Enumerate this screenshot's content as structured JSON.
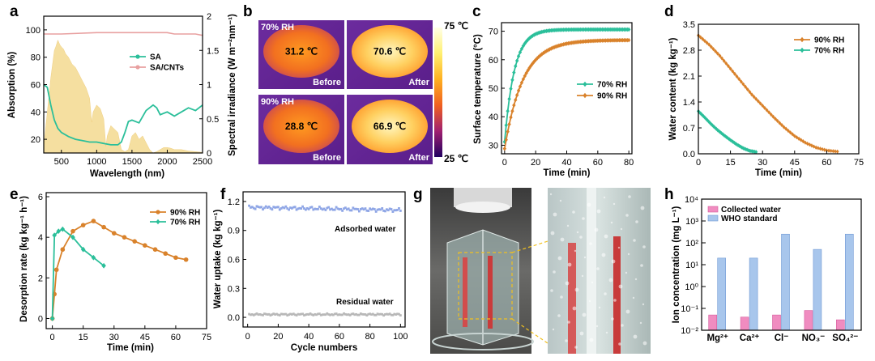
{
  "colors": {
    "teal": "#2bbf9a",
    "orange": "#d9822b",
    "pinkline": "#e8a0a0",
    "sunfill": "#f5dfa0",
    "bar_pink": "#f08cc0",
    "bar_blue": "#a8c6ec"
  },
  "chart_data": [
    {
      "panel": "a",
      "type": "line",
      "xlabel": "Wavelength (nm)",
      "ylabel": "Absorption (%)",
      "y2label": "Spectral irradiance (W m⁻²nm⁻¹)",
      "xlim": [
        250,
        2500
      ],
      "ylim": [
        10,
        110
      ],
      "y2lim": [
        0,
        2.0
      ],
      "xticks": [
        "500",
        "1000",
        "1500",
        "2000",
        "2500"
      ],
      "yticks": [
        "20",
        "40",
        "60",
        "80",
        "100"
      ],
      "y2ticks": [
        "0",
        "0.5",
        "1",
        "1.5",
        "2"
      ],
      "series": [
        {
          "name": "SA",
          "x": [
            250,
            300,
            350,
            400,
            450,
            500,
            600,
            700,
            800,
            900,
            1000,
            1100,
            1200,
            1300,
            1350,
            1400,
            1450,
            1500,
            1600,
            1700,
            1800,
            1850,
            1900,
            2000,
            2100,
            2200,
            2300,
            2400,
            2500
          ],
          "values": [
            60,
            58,
            45,
            34,
            28,
            25,
            22,
            20,
            19,
            18,
            18,
            17,
            16,
            16,
            18,
            25,
            33,
            34,
            32,
            41,
            45,
            43,
            38,
            40,
            37,
            40,
            43,
            41,
            45
          ]
        },
        {
          "name": "SA/CNTs",
          "x": [
            250,
            500,
            1000,
            1500,
            2000,
            2100,
            2200,
            2300,
            2400,
            2500
          ],
          "values": [
            97,
            97,
            98,
            98,
            98,
            97,
            97,
            97,
            97,
            96
          ]
        }
      ],
      "irradiance": {
        "x": [
          250,
          300,
          350,
          400,
          420,
          450,
          480,
          500,
          530,
          560,
          600,
          650,
          700,
          750,
          800,
          850,
          900,
          930,
          950,
          1000,
          1050,
          1100,
          1130,
          1150,
          1200,
          1250,
          1300,
          1350,
          1400,
          1450,
          1500,
          1550,
          1600,
          1650,
          1700,
          1750,
          1800,
          1850,
          1900,
          1950,
          2000,
          2050,
          2100,
          2200,
          2300,
          2400,
          2500
        ],
        "values": [
          0.1,
          0.6,
          1.1,
          1.5,
          1.55,
          1.65,
          1.58,
          1.55,
          1.52,
          1.45,
          1.4,
          1.3,
          1.25,
          1.15,
          1.05,
          0.95,
          0.8,
          0.45,
          0.6,
          0.7,
          0.65,
          0.5,
          0.1,
          0.25,
          0.4,
          0.35,
          0.3,
          0.05,
          0.02,
          0.05,
          0.25,
          0.3,
          0.2,
          0.25,
          0.15,
          0.05,
          0.0,
          0.02,
          0.05,
          0.08,
          0.08,
          0.07,
          0.05,
          0.05,
          0.03,
          0.02,
          0.01
        ]
      }
    },
    {
      "panel": "b",
      "type": "table",
      "cells": [
        {
          "rh": "70% RH",
          "temp": "31.2 ℃",
          "state": "Before"
        },
        {
          "temp": "70.6 ℃",
          "state": "After"
        },
        {
          "rh": "90% RH",
          "temp": "28.8 ℃",
          "state": "Before"
        },
        {
          "temp": "66.9 ℃",
          "state": "After"
        }
      ],
      "scale_max": "75 ℃",
      "scale_min": "25 ℃"
    },
    {
      "panel": "c",
      "type": "line",
      "xlabel": "Time (min)",
      "ylabel": "Surface temperature (°C)",
      "xlim": [
        -2,
        82
      ],
      "ylim": [
        27,
        73
      ],
      "xticks": [
        "0",
        "20",
        "40",
        "60",
        "80"
      ],
      "yticks": [
        "30",
        "40",
        "50",
        "60",
        "70"
      ],
      "series": [
        {
          "name": "70% RH",
          "final": 70.6,
          "start": 31.2,
          "k": 0.16,
          "x_end": 80
        },
        {
          "name": "90% RH",
          "final": 66.9,
          "start": 28.8,
          "k": 0.085,
          "x_end": 80
        }
      ]
    },
    {
      "panel": "d",
      "type": "line",
      "xlabel": "Time (min)",
      "ylabel": "Water content (kg kg⁻¹)",
      "xlim": [
        0,
        75
      ],
      "ylim": [
        0,
        3.5
      ],
      "xticks": [
        "0",
        "15",
        "30",
        "45",
        "60",
        "75"
      ],
      "yticks": [
        "0.0",
        "0.7",
        "1.4",
        "2.1",
        "2.8",
        "3.5"
      ],
      "series": [
        {
          "name": "90% RH",
          "x": [
            0,
            5,
            10,
            15,
            20,
            25,
            30,
            35,
            40,
            45,
            50,
            55,
            60,
            65
          ],
          "values": [
            3.2,
            2.95,
            2.65,
            2.3,
            1.95,
            1.6,
            1.3,
            1.0,
            0.72,
            0.48,
            0.3,
            0.17,
            0.09,
            0.06
          ]
        },
        {
          "name": "70% RH",
          "x": [
            0,
            3,
            6,
            9,
            12,
            15,
            18,
            21,
            24,
            27
          ],
          "values": [
            1.15,
            0.98,
            0.8,
            0.64,
            0.5,
            0.37,
            0.25,
            0.15,
            0.08,
            0.05
          ]
        }
      ]
    },
    {
      "panel": "e",
      "type": "line",
      "xlabel": "Time (min)",
      "ylabel": "Desorption rate (kg kg⁻¹ h⁻¹)",
      "xlim": [
        -3,
        75
      ],
      "ylim": [
        -0.5,
        6.2
      ],
      "xticks": [
        "0",
        "15",
        "30",
        "45",
        "60",
        "75"
      ],
      "yticks": [
        "0",
        "2",
        "4",
        "6"
      ],
      "series": [
        {
          "name": "90% RH",
          "x": [
            0,
            1,
            2,
            5,
            10,
            15,
            20,
            25,
            30,
            35,
            40,
            45,
            50,
            55,
            60,
            65
          ],
          "values": [
            0,
            1.2,
            2.4,
            3.4,
            4.3,
            4.6,
            4.8,
            4.5,
            4.2,
            4.0,
            3.8,
            3.6,
            3.4,
            3.2,
            3.0,
            2.9
          ]
        },
        {
          "name": "70% RH",
          "x": [
            0,
            1,
            3,
            5,
            10,
            15,
            20,
            25
          ],
          "values": [
            0,
            4.1,
            4.3,
            4.4,
            4.0,
            3.4,
            3.0,
            2.6
          ]
        }
      ]
    },
    {
      "panel": "f",
      "type": "line",
      "xlabel": "Cycle numbers",
      "ylabel": "Water uptake (kg kg⁻¹)",
      "xlim": [
        -3,
        103
      ],
      "ylim": [
        -0.1,
        1.3
      ],
      "xticks": [
        "0",
        "20",
        "40",
        "60",
        "80",
        "100"
      ],
      "yticks": [
        "0.0",
        "0.3",
        "0.6",
        "0.9",
        "1.2"
      ],
      "series": [
        {
          "name": "Adsorbed water",
          "base": 1.14,
          "amp": 0.02
        },
        {
          "name": "Residual water",
          "base": 0.03,
          "amp": 0.01
        }
      ]
    },
    {
      "panel": "h",
      "type": "bar",
      "ylabel": "Ion concentration (mg L⁻¹)",
      "log": true,
      "categories": [
        "Mg²⁺",
        "Ca²⁺",
        "Cl⁻",
        "NO₃⁻",
        "SO₄²⁻"
      ],
      "yticks": [
        "10⁻²",
        "10⁻¹",
        "10⁰",
        "10¹",
        "10²",
        "10³",
        "10⁴"
      ],
      "series": [
        {
          "name": "Collected water",
          "values": [
            0.05,
            0.04,
            0.05,
            0.08,
            0.03
          ]
        },
        {
          "name": "WHO standard",
          "values": [
            20,
            20,
            250,
            50,
            250
          ]
        }
      ]
    }
  ],
  "panels": {
    "a": "a",
    "b": "b",
    "c": "c",
    "d": "d",
    "e": "e",
    "f": "f",
    "g": "g",
    "h": "h"
  }
}
